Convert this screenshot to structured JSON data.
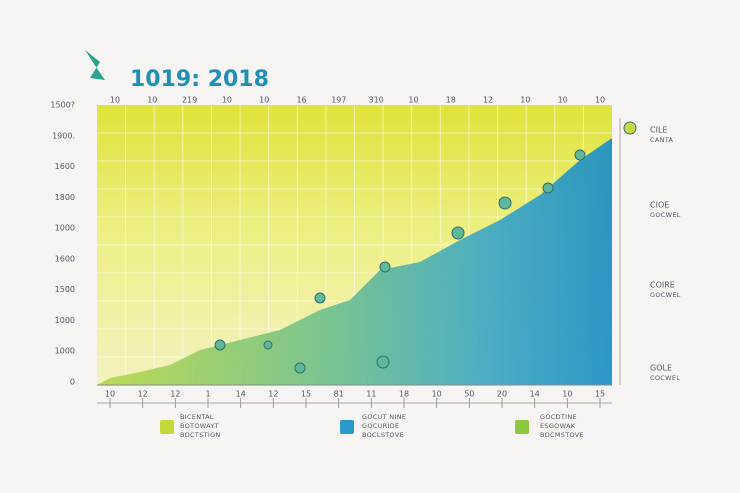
{
  "title": "1019: 2018",
  "y_labels": [
    "1500?",
    "1900.",
    "1600",
    "1800",
    "1000",
    "1600",
    "1500",
    "1000",
    "1000",
    "0"
  ],
  "top_labels": [
    "10",
    "10",
    "219",
    "10",
    "10",
    "16",
    "197",
    "310",
    "10",
    "18",
    "12",
    "10",
    "10",
    "10"
  ],
  "bottom_labels": [
    "10",
    "12",
    "12",
    "1",
    "14",
    "12",
    "15",
    "81",
    "11",
    "18",
    "10",
    "50",
    "20",
    "14",
    "10",
    "15"
  ],
  "legend": [
    [
      "BICENTAL",
      "BOTOWAYT",
      "BOCTSTIGN"
    ],
    [
      "GOCUT NINE",
      "GOCURIDE",
      "BOCLSTOVE"
    ],
    [
      "GOCDTINE",
      "ESGOWAK",
      "BOCMSTOVE"
    ]
  ],
  "right_labels": [
    [
      "CILE",
      "CANTA"
    ],
    [
      "CIOE",
      "GOCWEL"
    ],
    [
      "COIRE",
      "GOCWEL"
    ],
    [
      "GOLE",
      "COCWEL"
    ]
  ]
}
